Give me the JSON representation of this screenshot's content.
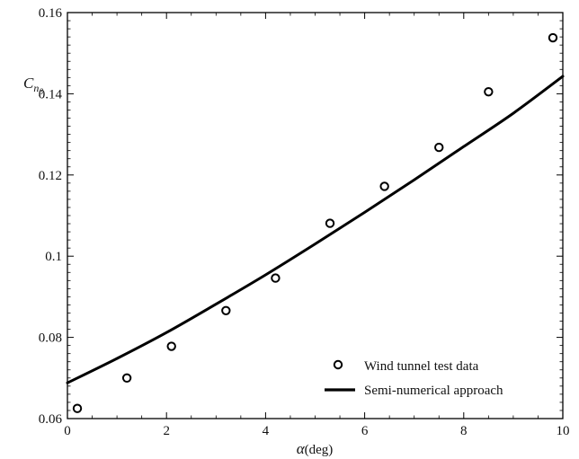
{
  "chart_data": {
    "type": "scatter",
    "xlabel_symbol": "α",
    "xlabel_unit": "(deg)",
    "ylabel_main": "C",
    "ylabel_sub": "n",
    "ylabel_subsub": "β",
    "xlim": [
      0,
      10
    ],
    "ylim": [
      0.06,
      0.16
    ],
    "x_ticks": [
      {
        "value": 0,
        "label": "0"
      },
      {
        "value": 2,
        "label": "2"
      },
      {
        "value": 4,
        "label": "4"
      },
      {
        "value": 6,
        "label": "6"
      },
      {
        "value": 8,
        "label": "8"
      },
      {
        "value": 10,
        "label": "10"
      }
    ],
    "y_ticks": [
      {
        "value": 0.06,
        "label": "0.06"
      },
      {
        "value": 0.08,
        "label": "0.08"
      },
      {
        "value": 0.1,
        "label": "0.1"
      },
      {
        "value": 0.12,
        "label": "0.12"
      },
      {
        "value": 0.14,
        "label": "0.14"
      },
      {
        "value": 0.16,
        "label": "0.16"
      }
    ],
    "grid": false,
    "legend_position": "bottom-right",
    "series": [
      {
        "name": "Wind tunnel test data",
        "kind": "markers",
        "marker": "open-circle",
        "x": [
          0.2,
          1.2,
          2.1,
          3.2,
          4.2,
          5.3,
          6.4,
          7.5,
          8.5,
          9.8
        ],
        "y": [
          0.0625,
          0.07,
          0.0778,
          0.0866,
          0.0946,
          0.1081,
          0.1172,
          0.1268,
          0.1405,
          0.1538
        ]
      },
      {
        "name": "Semi-numerical approach",
        "kind": "line",
        "x": [
          0,
          1,
          2,
          3,
          4,
          5,
          6,
          7,
          8,
          9,
          10
        ],
        "y": [
          0.0688,
          0.0748,
          0.0812,
          0.0882,
          0.0954,
          0.103,
          0.1108,
          0.1188,
          0.127,
          0.1352,
          0.1443
        ]
      }
    ]
  }
}
